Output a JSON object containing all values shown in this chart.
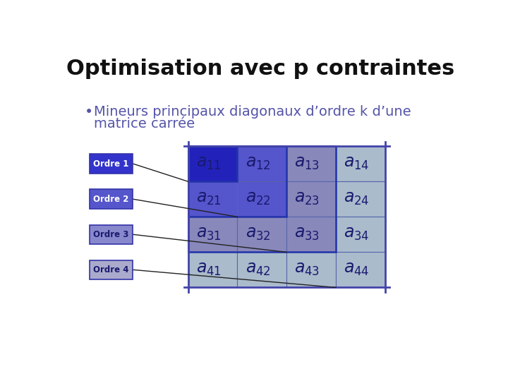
{
  "title": "Optimisation avec p contraintes",
  "title_color": "#111111",
  "title_fontsize": 22,
  "bullet_text_line1": "Mineurs principaux diagonaux d’ordre k d’une",
  "bullet_text_line2": "matrice carrée",
  "bullet_color": "#5555aa",
  "bullet_fontsize": 14,
  "ordre_labels": [
    "Ordre 1",
    "Ordre 2",
    "Ordre 3",
    "Ordre 4"
  ],
  "ordre_box_colors": [
    "#3333cc",
    "#5555cc",
    "#8888cc",
    "#aaaacc"
  ],
  "ordre_border_color": "#3333aa",
  "color_order1": "#2222bb",
  "color_order2": "#5555cc",
  "color_order3": "#8888bb",
  "color_order4": "#aabbcc",
  "matrix_bg": "#bbccdd",
  "matrix_border_color": "#4444aa",
  "matrix_text_color": "#1a1a6e",
  "cell_border_color": "#5566aa",
  "line_color": "#222222"
}
